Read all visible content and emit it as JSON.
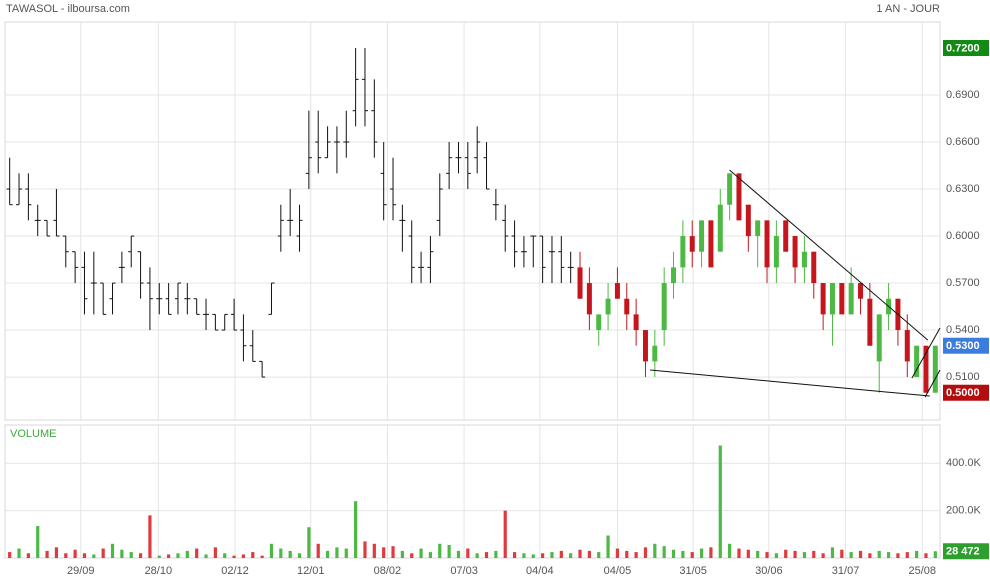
{
  "chart_data": [
    {
      "type": "candlestick",
      "title": "TAWASOL - ilboursa.com",
      "subtitle": "1 AN - JOUR",
      "xlim": [
        -0.5,
        99.5
      ],
      "ylim": [
        0.4826,
        0.7366
      ],
      "grid": true,
      "xticks": [
        {
          "value": 7.6,
          "label": "29/09"
        },
        {
          "value": 15.9,
          "label": "28/10"
        },
        {
          "value": 24.1,
          "label": "02/12"
        },
        {
          "value": 32.2,
          "label": "12/01"
        },
        {
          "value": 40.4,
          "label": "08/02"
        },
        {
          "value": 48.6,
          "label": "07/03"
        },
        {
          "value": 56.7,
          "label": "04/04"
        },
        {
          "value": 65,
          "label": "04/05"
        },
        {
          "value": 73.1,
          "label": "31/05"
        },
        {
          "value": 81.2,
          "label": "30/06"
        },
        {
          "value": 89.4,
          "label": "31/07"
        },
        {
          "value": 97.6,
          "label": "25/08"
        }
      ],
      "yticks": [
        {
          "value": 0.51,
          "label": "0.5100"
        },
        {
          "value": 0.54,
          "label": "0.5400"
        },
        {
          "value": 0.57,
          "label": "0.5700"
        },
        {
          "value": 0.6,
          "label": "0.6000"
        },
        {
          "value": 0.63,
          "label": "0.6300"
        },
        {
          "value": 0.66,
          "label": "0.6600"
        },
        {
          "value": 0.69,
          "label": "0.6900"
        }
      ],
      "markers": [
        {
          "value": 0.72,
          "label": "0.7200",
          "color": "#138a13"
        },
        {
          "value": 0.53,
          "label": "0.5300",
          "color": "#3b7ddd"
        },
        {
          "value": 0.5,
          "label": "0.5000",
          "color": "#b50d0d"
        }
      ],
      "series": [
        {
          "type": "ohlc",
          "color": "#111111",
          "x": [
            0,
            1,
            2,
            3,
            4,
            5,
            6,
            7,
            8,
            9,
            10,
            11,
            12,
            13,
            14,
            15,
            16,
            17,
            18,
            19,
            20,
            21,
            22,
            23,
            24,
            25,
            26,
            27,
            28,
            29,
            30,
            31,
            32,
            33,
            34,
            35,
            36,
            37,
            38,
            39,
            40,
            41,
            42,
            43,
            44,
            45,
            46,
            47,
            48,
            49,
            50,
            51,
            52,
            53,
            54,
            55,
            56,
            57,
            58,
            59,
            60
          ],
          "open": [
            0.63,
            0.62,
            0.63,
            0.61,
            0.61,
            0.61,
            0.6,
            0.59,
            0.58,
            0.57,
            0.57,
            0.56,
            0.58,
            0.59,
            0.59,
            0.57,
            0.56,
            0.56,
            0.56,
            0.56,
            0.56,
            0.55,
            0.55,
            0.54,
            0.55,
            0.54,
            0.53,
            0.52,
            0.55,
            0.6,
            0.61,
            0.6,
            0.64,
            0.66,
            0.65,
            0.66,
            0.66,
            0.68,
            0.7,
            0.68,
            0.64,
            0.63,
            0.61,
            0.6,
            0.58,
            0.58,
            0.61,
            0.64,
            0.65,
            0.65,
            0.65,
            0.65,
            0.62,
            0.61,
            0.6,
            0.59,
            0.6,
            0.6,
            0.59,
            0.59,
            0.58
          ],
          "high": [
            0.65,
            0.64,
            0.64,
            0.62,
            0.61,
            0.63,
            0.6,
            0.59,
            0.59,
            0.59,
            0.57,
            0.57,
            0.59,
            0.6,
            0.59,
            0.58,
            0.57,
            0.57,
            0.57,
            0.57,
            0.56,
            0.56,
            0.55,
            0.55,
            0.56,
            0.55,
            0.54,
            0.52,
            0.57,
            0.62,
            0.63,
            0.62,
            0.68,
            0.68,
            0.67,
            0.67,
            0.68,
            0.72,
            0.72,
            0.7,
            0.66,
            0.65,
            0.62,
            0.61,
            0.59,
            0.6,
            0.64,
            0.66,
            0.66,
            0.66,
            0.67,
            0.66,
            0.63,
            0.62,
            0.61,
            0.6,
            0.6,
            0.6,
            0.6,
            0.6,
            0.59
          ],
          "low": [
            0.62,
            0.62,
            0.61,
            0.6,
            0.6,
            0.6,
            0.58,
            0.57,
            0.55,
            0.55,
            0.55,
            0.55,
            0.57,
            0.58,
            0.56,
            0.54,
            0.55,
            0.55,
            0.55,
            0.55,
            0.55,
            0.54,
            0.54,
            0.54,
            0.54,
            0.52,
            0.52,
            0.51,
            0.55,
            0.59,
            0.6,
            0.59,
            0.63,
            0.64,
            0.65,
            0.64,
            0.65,
            0.67,
            0.67,
            0.65,
            0.61,
            0.61,
            0.59,
            0.57,
            0.57,
            0.57,
            0.6,
            0.63,
            0.64,
            0.63,
            0.64,
            0.63,
            0.61,
            0.59,
            0.58,
            0.58,
            0.58,
            0.57,
            0.57,
            0.57,
            0.57
          ],
          "close": [
            0.62,
            0.63,
            0.62,
            0.61,
            0.6,
            0.6,
            0.59,
            0.58,
            0.56,
            0.57,
            0.55,
            0.57,
            0.58,
            0.6,
            0.57,
            0.56,
            0.56,
            0.55,
            0.57,
            0.56,
            0.55,
            0.55,
            0.54,
            0.55,
            0.54,
            0.53,
            0.52,
            0.51,
            0.57,
            0.61,
            0.61,
            0.61,
            0.65,
            0.65,
            0.66,
            0.66,
            0.66,
            0.7,
            0.68,
            0.66,
            0.62,
            0.62,
            0.61,
            0.58,
            0.58,
            0.59,
            0.63,
            0.65,
            0.65,
            0.64,
            0.66,
            0.63,
            0.62,
            0.6,
            0.59,
            0.59,
            0.6,
            0.58,
            0.59,
            0.58,
            0.58
          ]
        },
        {
          "type": "candlestick",
          "up_color": "#4cb944",
          "down_color": "#c4161c",
          "x": [
            61,
            62,
            63,
            64,
            65,
            66,
            67,
            68,
            69,
            70,
            71,
            72,
            73,
            74,
            75,
            76,
            77,
            78,
            79,
            80,
            81,
            82,
            83,
            84,
            85,
            86,
            87,
            88,
            89,
            90,
            91,
            92,
            93,
            94,
            95,
            96,
            97,
            98,
            99
          ],
          "open": [
            0.58,
            0.57,
            0.54,
            0.55,
            0.57,
            0.56,
            0.55,
            0.54,
            0.52,
            0.54,
            0.57,
            0.58,
            0.6,
            0.59,
            0.61,
            0.59,
            0.62,
            0.64,
            0.62,
            0.6,
            0.61,
            0.58,
            0.61,
            0.6,
            0.58,
            0.59,
            0.57,
            0.55,
            0.57,
            0.55,
            0.57,
            0.56,
            0.52,
            0.55,
            0.56,
            0.54,
            0.51,
            0.53,
            0.5
          ],
          "high": [
            0.59,
            0.58,
            0.55,
            0.57,
            0.58,
            0.57,
            0.56,
            0.54,
            0.54,
            0.58,
            0.59,
            0.61,
            0.61,
            0.61,
            0.61,
            0.63,
            0.64,
            0.64,
            0.62,
            0.61,
            0.61,
            0.61,
            0.61,
            0.6,
            0.6,
            0.59,
            0.57,
            0.57,
            0.57,
            0.58,
            0.57,
            0.57,
            0.55,
            0.57,
            0.56,
            0.55,
            0.53,
            0.53,
            0.53
          ],
          "low": [
            0.56,
            0.54,
            0.53,
            0.54,
            0.56,
            0.54,
            0.53,
            0.51,
            0.51,
            0.53,
            0.56,
            0.57,
            0.58,
            0.58,
            0.58,
            0.59,
            0.61,
            0.61,
            0.59,
            0.58,
            0.57,
            0.57,
            0.59,
            0.57,
            0.57,
            0.56,
            0.54,
            0.53,
            0.55,
            0.55,
            0.55,
            0.53,
            0.5,
            0.54,
            0.53,
            0.51,
            0.51,
            0.5,
            0.5
          ],
          "close": [
            0.56,
            0.55,
            0.55,
            0.56,
            0.56,
            0.55,
            0.54,
            0.52,
            0.53,
            0.57,
            0.58,
            0.6,
            0.59,
            0.61,
            0.58,
            0.62,
            0.64,
            0.61,
            0.6,
            0.61,
            0.58,
            0.6,
            0.59,
            0.58,
            0.59,
            0.57,
            0.55,
            0.57,
            0.55,
            0.57,
            0.56,
            0.53,
            0.55,
            0.56,
            0.54,
            0.52,
            0.53,
            0.5,
            0.53
          ]
        }
      ],
      "trendlines": [
        {
          "x": [
            77.0,
            98.2
          ],
          "y": [
            0.6421,
            0.5336
          ]
        },
        {
          "x": [
            68.5,
            98.4
          ],
          "y": [
            0.5145,
            0.4979
          ]
        },
        {
          "x": [
            96.5,
            99.5
          ],
          "y": [
            0.5094,
            0.5413
          ]
        },
        {
          "x": [
            97.9,
            99.5
          ],
          "y": [
            0.4972,
            0.5145
          ]
        }
      ]
    },
    {
      "type": "bar",
      "title": "VOLUME",
      "up_color": "#4cb944",
      "down_color": "#e0393e",
      "xlim": [
        -0.5,
        99.5
      ],
      "ylim": [
        0,
        561700
      ],
      "yticks": [
        {
          "value": 200000,
          "label": "200.0K"
        },
        {
          "value": 400000,
          "label": "400.0K"
        }
      ],
      "markers": [
        {
          "value": 28472,
          "label": "28 472",
          "color": "#2e9e2e"
        }
      ],
      "x": [
        0,
        1,
        2,
        3,
        4,
        5,
        6,
        7,
        8,
        9,
        10,
        11,
        12,
        13,
        14,
        15,
        16,
        17,
        18,
        19,
        20,
        21,
        22,
        23,
        24,
        25,
        26,
        27,
        28,
        29,
        30,
        31,
        32,
        33,
        34,
        35,
        36,
        37,
        38,
        39,
        40,
        41,
        42,
        43,
        44,
        45,
        46,
        47,
        48,
        49,
        50,
        51,
        52,
        53,
        54,
        55,
        56,
        57,
        58,
        59,
        60,
        61,
        62,
        63,
        64,
        65,
        66,
        67,
        68,
        69,
        70,
        71,
        72,
        73,
        74,
        75,
        76,
        77,
        78,
        79,
        80,
        81,
        82,
        83,
        84,
        85,
        86,
        87,
        88,
        89,
        90,
        91,
        92,
        93,
        94,
        95,
        96,
        97,
        98,
        99
      ],
      "values": [
        25000,
        40000,
        20000,
        135000,
        30000,
        45000,
        20000,
        35000,
        20000,
        15000,
        40000,
        60000,
        35000,
        25000,
        20000,
        180000,
        10000,
        15000,
        20000,
        30000,
        40000,
        15000,
        45000,
        20000,
        10000,
        15000,
        25000,
        10000,
        60000,
        40000,
        30000,
        20000,
        130000,
        60000,
        30000,
        45000,
        40000,
        240000,
        70000,
        60000,
        45000,
        50000,
        30000,
        20000,
        40000,
        25000,
        60000,
        55000,
        30000,
        40000,
        20000,
        25000,
        30000,
        200000,
        25000,
        20000,
        15000,
        20000,
        25000,
        30000,
        20000,
        35000,
        30000,
        25000,
        95000,
        40000,
        30000,
        25000,
        45000,
        60000,
        50000,
        35000,
        30000,
        25000,
        40000,
        45000,
        475000,
        60000,
        40000,
        35000,
        30000,
        25000,
        20000,
        35000,
        30000,
        25000,
        30000,
        20000,
        45000,
        35000,
        25000,
        30000,
        20000,
        30000,
        25000,
        20000,
        25000,
        30000,
        20000,
        28472
      ]
    }
  ]
}
